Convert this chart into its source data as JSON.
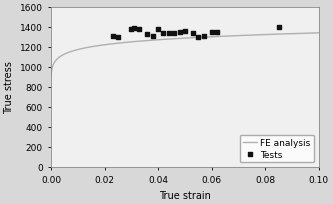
{
  "title": "",
  "xlabel": "True strain",
  "ylabel": "True stress",
  "xlim": [
    0.0,
    0.1
  ],
  "ylim": [
    0,
    1600
  ],
  "yticks": [
    0,
    200,
    400,
    600,
    800,
    1000,
    1200,
    1400,
    1600
  ],
  "xticks": [
    0.0,
    0.02,
    0.04,
    0.06,
    0.08,
    0.1
  ],
  "swift_C": 1530,
  "swift_eps0": 0.00012,
  "swift_n": 0.058,
  "test_points": [
    [
      0.023,
      1305
    ],
    [
      0.025,
      1300
    ],
    [
      0.03,
      1380
    ],
    [
      0.031,
      1385
    ],
    [
      0.033,
      1375
    ],
    [
      0.036,
      1330
    ],
    [
      0.038,
      1310
    ],
    [
      0.04,
      1380
    ],
    [
      0.042,
      1335
    ],
    [
      0.044,
      1340
    ],
    [
      0.046,
      1340
    ],
    [
      0.048,
      1350
    ],
    [
      0.05,
      1355
    ],
    [
      0.053,
      1340
    ],
    [
      0.055,
      1300
    ],
    [
      0.057,
      1310
    ],
    [
      0.06,
      1345
    ],
    [
      0.062,
      1345
    ],
    [
      0.085,
      1395
    ]
  ],
  "fe_color": "#b0b0b0",
  "test_color": "#111111",
  "bg_color": "#d8d8d8",
  "plot_bg_color": "#f0f0f0",
  "legend_loc": "lower right",
  "fe_linewidth": 1.0,
  "marker_size": 3.5
}
